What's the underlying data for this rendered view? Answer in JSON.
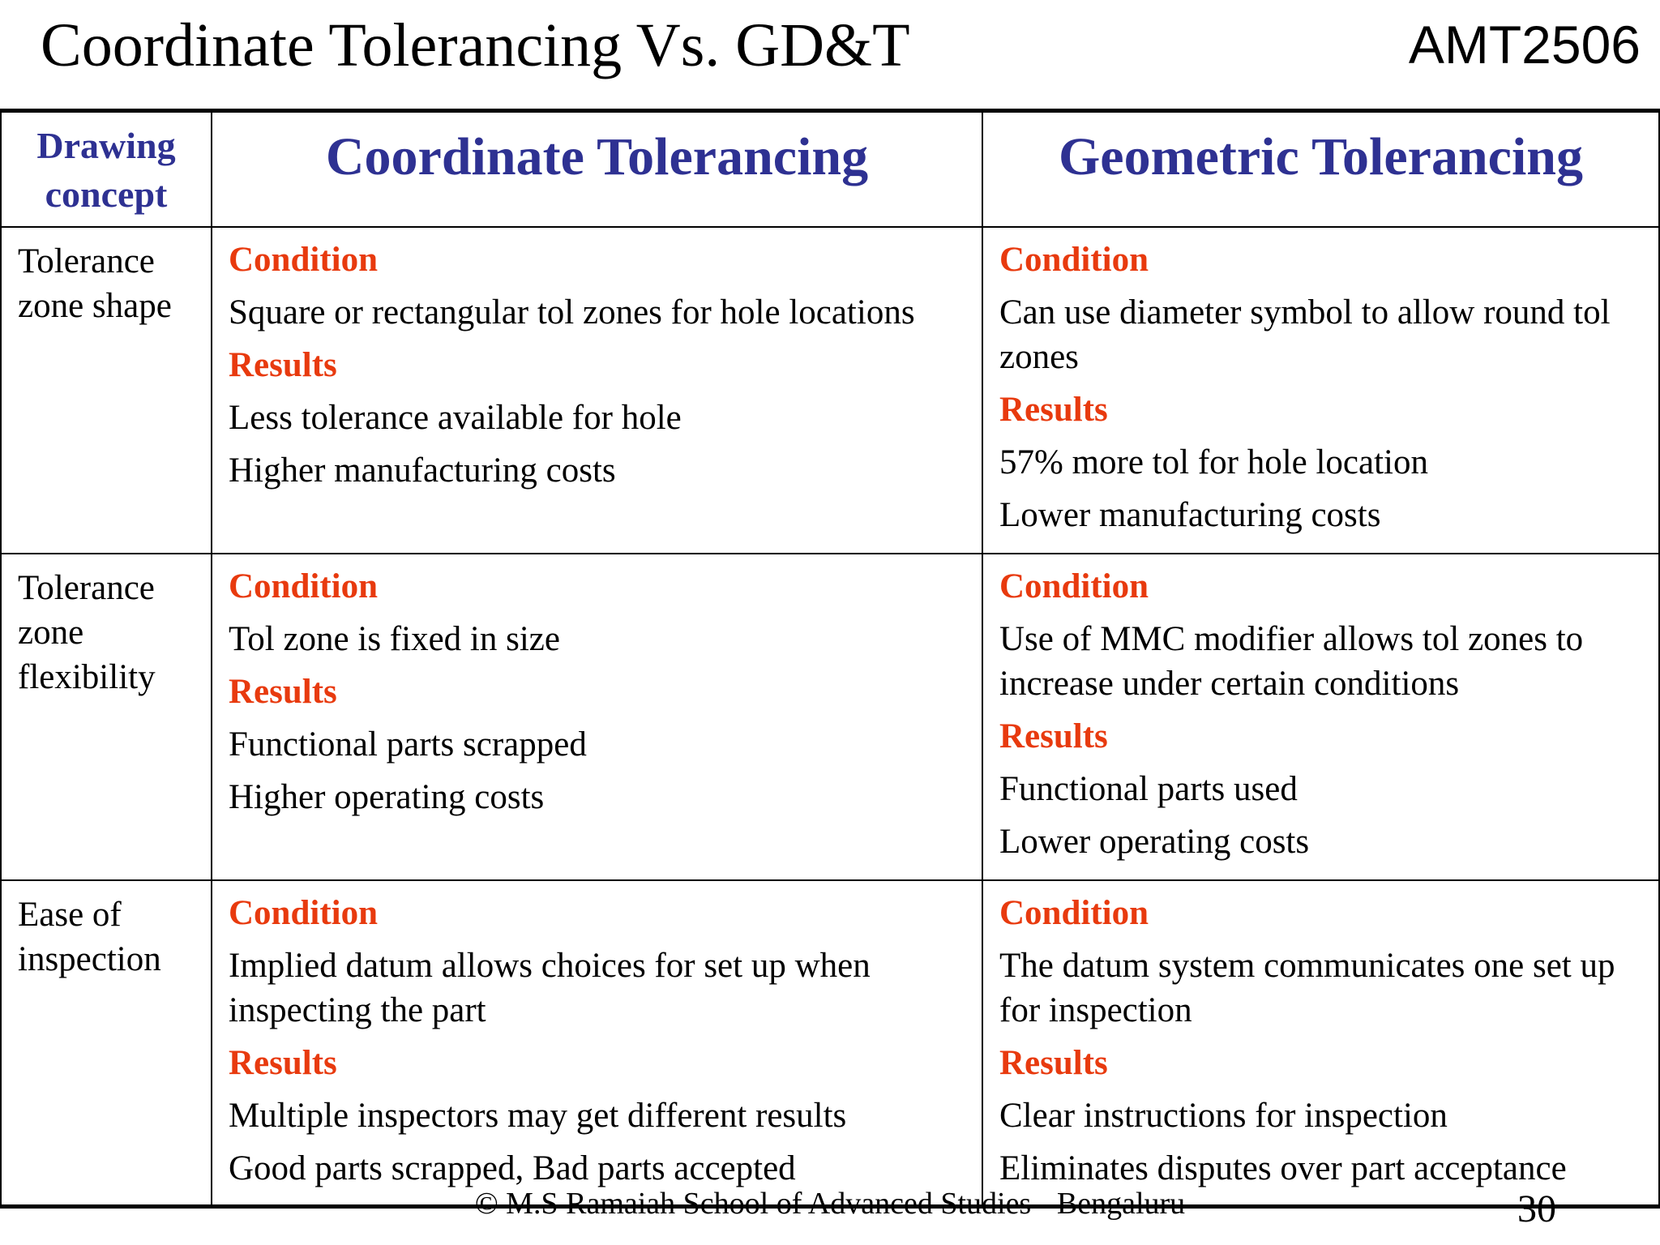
{
  "slide": {
    "title": "Coordinate Tolerancing Vs. GD&T",
    "course_code": "AMT2506"
  },
  "table": {
    "headers": {
      "concept": "Drawing concept",
      "coordinate": "Coordinate Tolerancing",
      "geometric": "Geometric Tolerancing"
    },
    "rows": [
      {
        "concept": "Tolerance zone shape",
        "coordinate": {
          "condition_label": "Condition",
          "condition": "Square or rectangular tol zones for hole locations",
          "results_label": "Results",
          "results": [
            "Less tolerance available for hole",
            "Higher manufacturing costs"
          ]
        },
        "geometric": {
          "condition_label": "Condition",
          "condition": "Can use diameter symbol to allow round tol zones",
          "results_label": "Results",
          "results": [
            "57% more tol for hole location",
            "Lower manufacturing costs"
          ]
        }
      },
      {
        "concept": "Tolerance zone flexibility",
        "coordinate": {
          "condition_label": "Condition",
          "condition": "Tol zone is fixed in size",
          "results_label": "Results",
          "results": [
            "Functional parts scrapped",
            "Higher operating costs"
          ]
        },
        "geometric": {
          "condition_label": "Condition",
          "condition": "Use of MMC modifier allows tol zones to increase under certain conditions",
          "results_label": "Results",
          "results": [
            "Functional parts used",
            "Lower operating costs"
          ]
        }
      },
      {
        "concept": "Ease of inspection",
        "coordinate": {
          "condition_label": "Condition",
          "condition": "Implied datum allows choices for set up when inspecting the part",
          "results_label": "Results",
          "results": [
            "Multiple inspectors may get different results",
            "Good parts scrapped, Bad parts accepted"
          ]
        },
        "geometric": {
          "condition_label": "Condition",
          "condition": "The datum system communicates one set up for inspection",
          "results_label": "Results",
          "results": [
            "Clear instructions for inspection",
            "Eliminates disputes over part acceptance"
          ]
        }
      }
    ]
  },
  "footer": {
    "copyright": "© M.S Ramaiah School of Advanced Studies - Bengaluru",
    "page_number": "30"
  },
  "colors": {
    "header_blue": "#2e3192",
    "label_red": "#e83a0e"
  }
}
